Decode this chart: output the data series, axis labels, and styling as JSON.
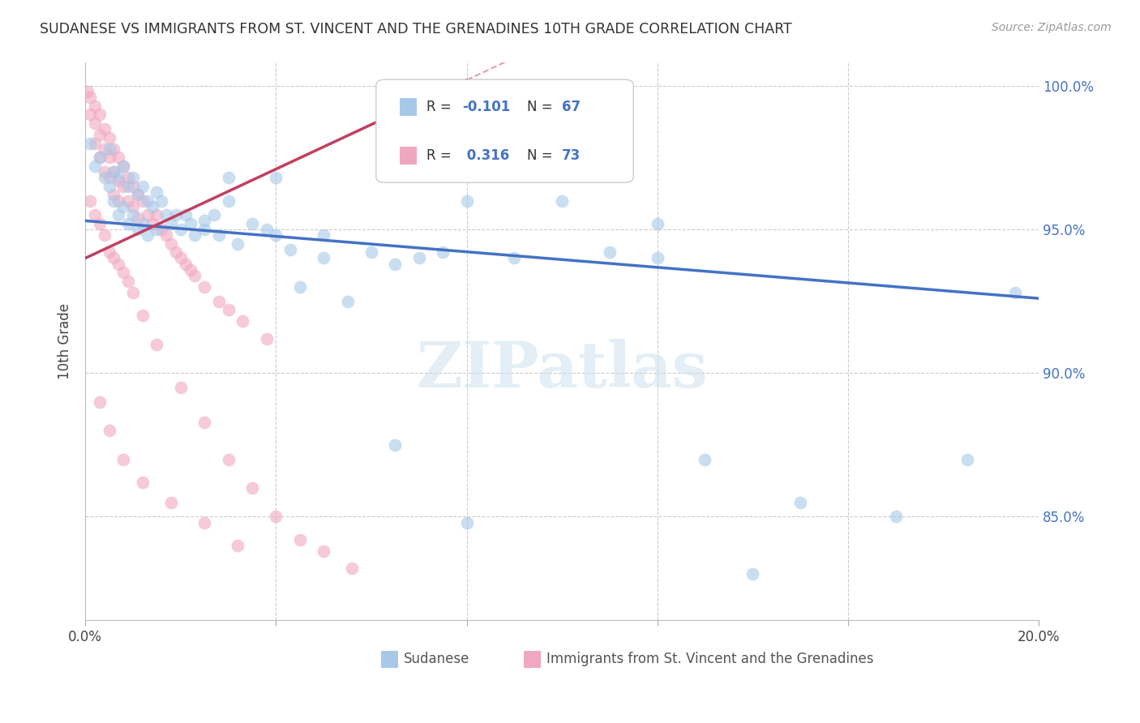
{
  "title": "SUDANESE VS IMMIGRANTS FROM ST. VINCENT AND THE GRENADINES 10TH GRADE CORRELATION CHART",
  "source": "Source: ZipAtlas.com",
  "xlabel_blue": "Sudanese",
  "xlabel_pink": "Immigrants from St. Vincent and the Grenadines",
  "ylabel": "10th Grade",
  "xmin": 0.0,
  "xmax": 0.2,
  "ymin": 0.814,
  "ymax": 1.008,
  "ytick_positions": [
    0.85,
    0.9,
    0.95,
    1.0
  ],
  "ytick_labels": [
    "85.0%",
    "90.0%",
    "95.0%",
    "100.0%"
  ],
  "xtick_positions": [
    0.0,
    0.04,
    0.08,
    0.12,
    0.16,
    0.2
  ],
  "xtick_labels": [
    "0.0%",
    "",
    "",
    "",
    "",
    "20.0%"
  ],
  "blue_R": -0.101,
  "blue_N": 67,
  "pink_R": 0.316,
  "pink_N": 73,
  "blue_color": "#a8c8e8",
  "pink_color": "#f0a8c0",
  "blue_line_color": "#4472c4",
  "pink_line_color": "#c04060",
  "watermark": "ZIPatlas",
  "blue_line_x0": 0.0,
  "blue_line_y0": 0.953,
  "blue_line_x1": 0.2,
  "blue_line_y1": 0.926,
  "pink_line_x0": 0.0,
  "pink_line_y0": 0.94,
  "pink_line_x1": 0.08,
  "pink_line_y1": 1.002,
  "blue_scatter_x": [
    0.001,
    0.002,
    0.003,
    0.004,
    0.005,
    0.005,
    0.006,
    0.006,
    0.007,
    0.007,
    0.008,
    0.008,
    0.009,
    0.009,
    0.01,
    0.01,
    0.011,
    0.011,
    0.012,
    0.012,
    0.013,
    0.013,
    0.014,
    0.015,
    0.015,
    0.016,
    0.017,
    0.018,
    0.019,
    0.02,
    0.021,
    0.022,
    0.023,
    0.025,
    0.027,
    0.028,
    0.03,
    0.032,
    0.035,
    0.038,
    0.04,
    0.043,
    0.045,
    0.05,
    0.055,
    0.06,
    0.065,
    0.07,
    0.075,
    0.08,
    0.09,
    0.1,
    0.11,
    0.12,
    0.13,
    0.15,
    0.17,
    0.185,
    0.195,
    0.025,
    0.03,
    0.04,
    0.05,
    0.065,
    0.08,
    0.12,
    0.14
  ],
  "blue_scatter_y": [
    0.98,
    0.972,
    0.975,
    0.968,
    0.978,
    0.965,
    0.97,
    0.96,
    0.968,
    0.955,
    0.972,
    0.958,
    0.965,
    0.952,
    0.968,
    0.955,
    0.962,
    0.95,
    0.965,
    0.952,
    0.96,
    0.948,
    0.958,
    0.963,
    0.95,
    0.96,
    0.955,
    0.952,
    0.955,
    0.95,
    0.955,
    0.952,
    0.948,
    0.953,
    0.955,
    0.948,
    0.96,
    0.945,
    0.952,
    0.95,
    0.948,
    0.943,
    0.93,
    0.94,
    0.925,
    0.942,
    0.938,
    0.94,
    0.942,
    0.96,
    0.94,
    0.96,
    0.942,
    0.94,
    0.87,
    0.855,
    0.85,
    0.87,
    0.928,
    0.95,
    0.968,
    0.968,
    0.948,
    0.875,
    0.848,
    0.952,
    0.83
  ],
  "pink_scatter_x": [
    0.0005,
    0.001,
    0.001,
    0.002,
    0.002,
    0.002,
    0.003,
    0.003,
    0.003,
    0.004,
    0.004,
    0.004,
    0.005,
    0.005,
    0.005,
    0.006,
    0.006,
    0.006,
    0.007,
    0.007,
    0.007,
    0.008,
    0.008,
    0.009,
    0.009,
    0.01,
    0.01,
    0.011,
    0.011,
    0.012,
    0.013,
    0.014,
    0.015,
    0.016,
    0.017,
    0.018,
    0.019,
    0.02,
    0.021,
    0.022,
    0.023,
    0.025,
    0.028,
    0.03,
    0.033,
    0.038,
    0.001,
    0.002,
    0.003,
    0.004,
    0.005,
    0.006,
    0.007,
    0.008,
    0.009,
    0.01,
    0.012,
    0.015,
    0.02,
    0.025,
    0.03,
    0.035,
    0.04,
    0.045,
    0.05,
    0.056,
    0.003,
    0.005,
    0.008,
    0.012,
    0.018,
    0.025,
    0.032
  ],
  "pink_scatter_y": [
    0.998,
    0.996,
    0.99,
    0.993,
    0.987,
    0.98,
    0.99,
    0.983,
    0.975,
    0.985,
    0.978,
    0.97,
    0.982,
    0.975,
    0.968,
    0.978,
    0.97,
    0.962,
    0.975,
    0.967,
    0.96,
    0.972,
    0.965,
    0.968,
    0.96,
    0.965,
    0.958,
    0.962,
    0.954,
    0.96,
    0.955,
    0.952,
    0.955,
    0.95,
    0.948,
    0.945,
    0.942,
    0.94,
    0.938,
    0.936,
    0.934,
    0.93,
    0.925,
    0.922,
    0.918,
    0.912,
    0.96,
    0.955,
    0.952,
    0.948,
    0.942,
    0.94,
    0.938,
    0.935,
    0.932,
    0.928,
    0.92,
    0.91,
    0.895,
    0.883,
    0.87,
    0.86,
    0.85,
    0.842,
    0.838,
    0.832,
    0.89,
    0.88,
    0.87,
    0.862,
    0.855,
    0.848,
    0.84
  ]
}
